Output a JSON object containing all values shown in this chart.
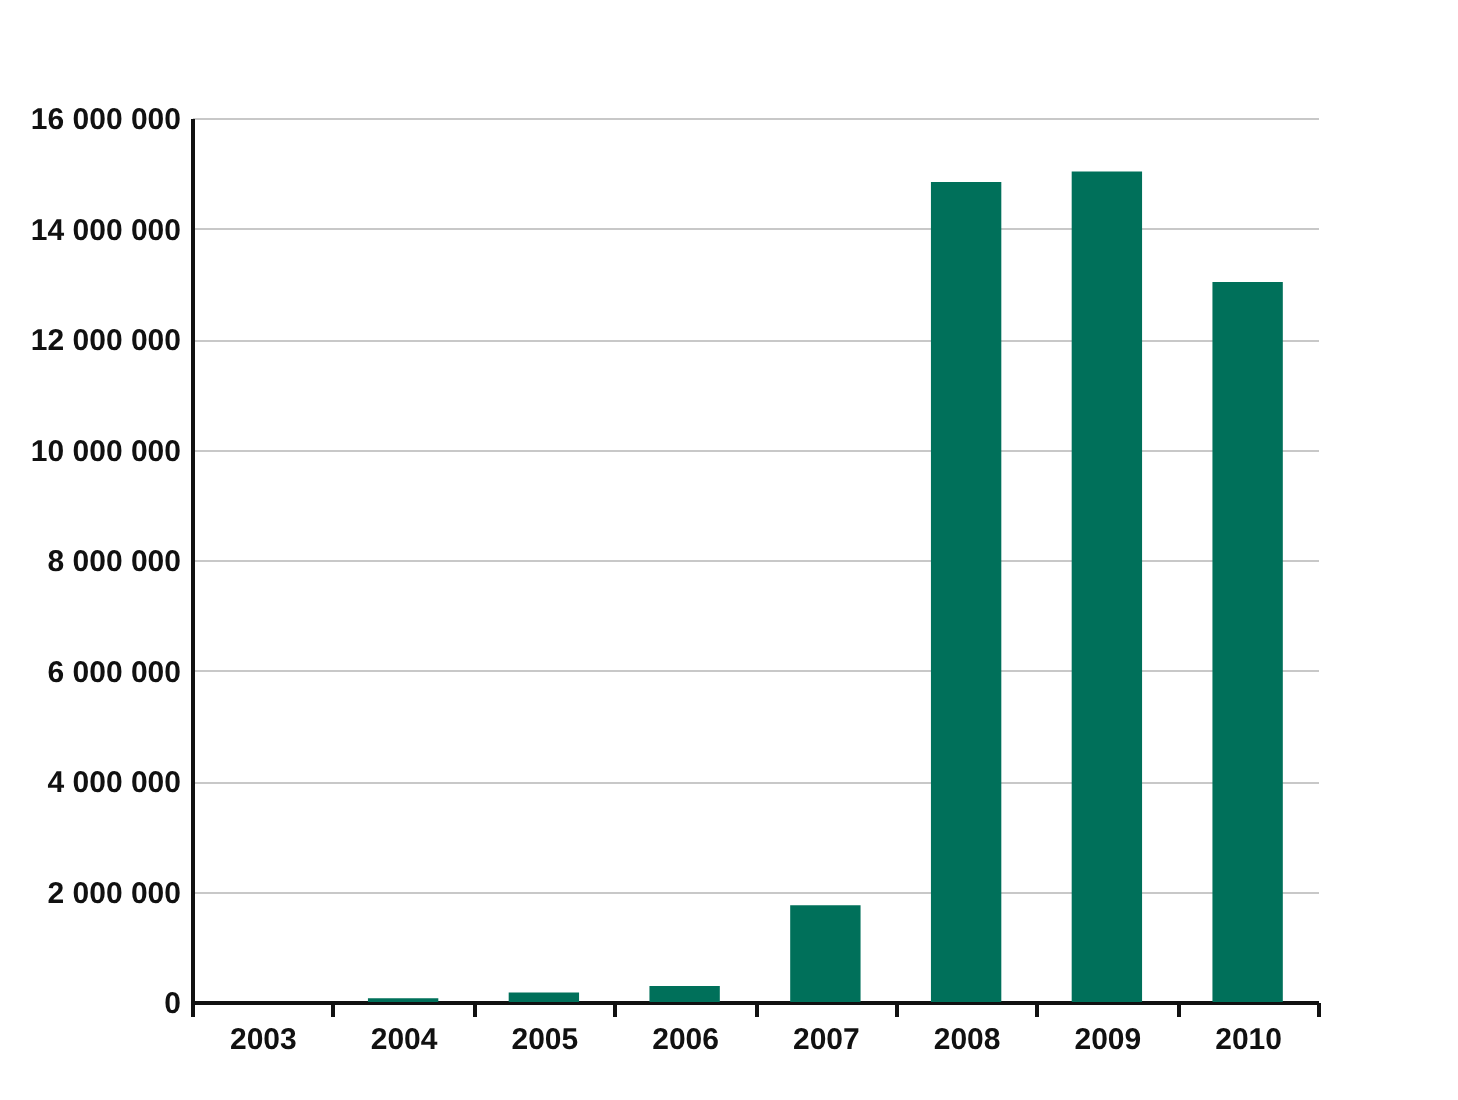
{
  "chart_data": {
    "type": "bar",
    "categories": [
      "2003",
      "2004",
      "2005",
      "2006",
      "2007",
      "2008",
      "2009",
      "2010"
    ],
    "values": [
      0,
      70000,
      170000,
      290000,
      1750000,
      14840000,
      15030000,
      13030000
    ],
    "color": "#00705a",
    "ylim": [
      0,
      16000000
    ],
    "yticks": [
      {
        "value": 0,
        "label": "0"
      },
      {
        "value": 2000000,
        "label": "2 000 000"
      },
      {
        "value": 4000000,
        "label": "4 000 000"
      },
      {
        "value": 6000000,
        "label": "6 000 000"
      },
      {
        "value": 8000000,
        "label": "8 000 000"
      },
      {
        "value": 10000000,
        "label": "10 000 000"
      },
      {
        "value": 12000000,
        "label": "12 000 000"
      },
      {
        "value": 14000000,
        "label": "14 000 000"
      },
      {
        "value": 16000000,
        "label": "16 000 000"
      }
    ],
    "grid": "y"
  }
}
